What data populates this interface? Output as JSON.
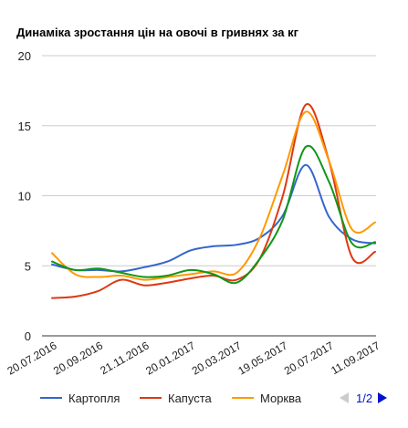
{
  "chart_data": {
    "type": "line",
    "title": "Динаміка зростання цін на овочі в гривнях за кг",
    "ylim": [
      0,
      20
    ],
    "yticks": [
      0,
      5,
      10,
      15,
      20
    ],
    "grid": true,
    "legend_position": "bottom",
    "xticks": [
      "20.07.2016",
      "20.09.2016",
      "21.11.2016",
      "20.01.2017",
      "20.03.2017",
      "19.05.2017",
      "20.07.2017",
      "11.09.2017"
    ],
    "x": [
      "20.07.2016",
      "20.08.2016",
      "20.09.2016",
      "21.10.2016",
      "21.11.2016",
      "21.12.2016",
      "20.01.2017",
      "20.02.2017",
      "20.03.2017",
      "20.04.2017",
      "19.05.2017",
      "19.06.2017",
      "20.07.2017",
      "20.08.2017",
      "11.09.2017"
    ],
    "series": [
      {
        "name": "Картопля",
        "color": "#3366cc",
        "values": [
          5.1,
          4.7,
          4.7,
          4.6,
          4.9,
          5.3,
          6.1,
          6.4,
          6.5,
          7.0,
          8.6,
          12.2,
          8.5,
          6.9,
          6.6
        ]
      },
      {
        "name": "Капуста",
        "color": "#dc3912",
        "values": [
          2.7,
          2.8,
          3.2,
          4.0,
          3.6,
          3.8,
          4.1,
          4.3,
          4.0,
          5.5,
          10.0,
          16.5,
          12.5,
          5.6,
          6.0
        ]
      },
      {
        "name": "Морква",
        "color": "#ff9900",
        "values": [
          5.9,
          4.4,
          4.2,
          4.3,
          4.0,
          4.2,
          4.4,
          4.6,
          4.5,
          7.0,
          11.5,
          16.0,
          12.5,
          7.6,
          8.1
        ]
      },
      {
        "name": "",
        "color": "#109618",
        "values": [
          5.3,
          4.7,
          4.8,
          4.5,
          4.2,
          4.3,
          4.7,
          4.4,
          3.8,
          5.5,
          8.3,
          13.5,
          11.0,
          6.6,
          6.7
        ]
      }
    ]
  },
  "pager": {
    "label": "1/2"
  }
}
